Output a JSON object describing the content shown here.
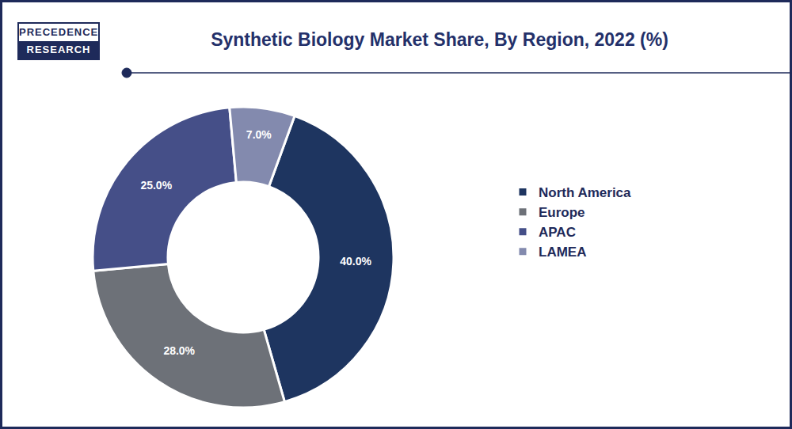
{
  "logo": [
    "PRECEDENCE",
    "RESEARCH"
  ],
  "chart_data": {
    "type": "pie",
    "title": "Synthetic Biology Market Share, By Region, 2022 (%)",
    "categories": [
      "North America",
      "Europe",
      "APAC",
      "LAMEA"
    ],
    "values": [
      40,
      28,
      25,
      7
    ],
    "value_labels": [
      "40.0%",
      "28.0%",
      "25.0%",
      "7.0%"
    ],
    "colors": [
      "#1e3560",
      "#6d7178",
      "#454f88",
      "#838aae"
    ],
    "data_labels": true,
    "legend": "right"
  }
}
